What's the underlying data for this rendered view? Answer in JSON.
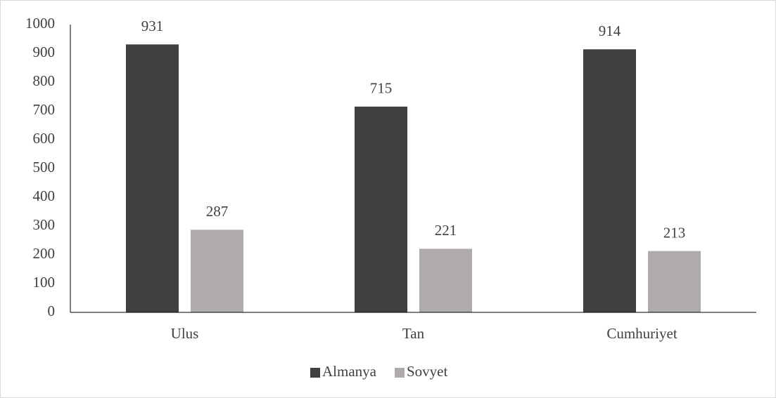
{
  "chart_data": {
    "type": "bar",
    "categories": [
      "Ulus",
      "Tan",
      "Cumhuriyet"
    ],
    "series": [
      {
        "name": "Almanya",
        "color": "#404040",
        "values": [
          931,
          715,
          914
        ]
      },
      {
        "name": "Sovyet",
        "color": "#afabab",
        "values": [
          287,
          221,
          213
        ]
      }
    ],
    "ylim": [
      0,
      1000
    ],
    "yticks": [
      0,
      100,
      200,
      300,
      400,
      500,
      600,
      700,
      800,
      900,
      1000
    ],
    "grid": false,
    "legend": "bottom"
  }
}
